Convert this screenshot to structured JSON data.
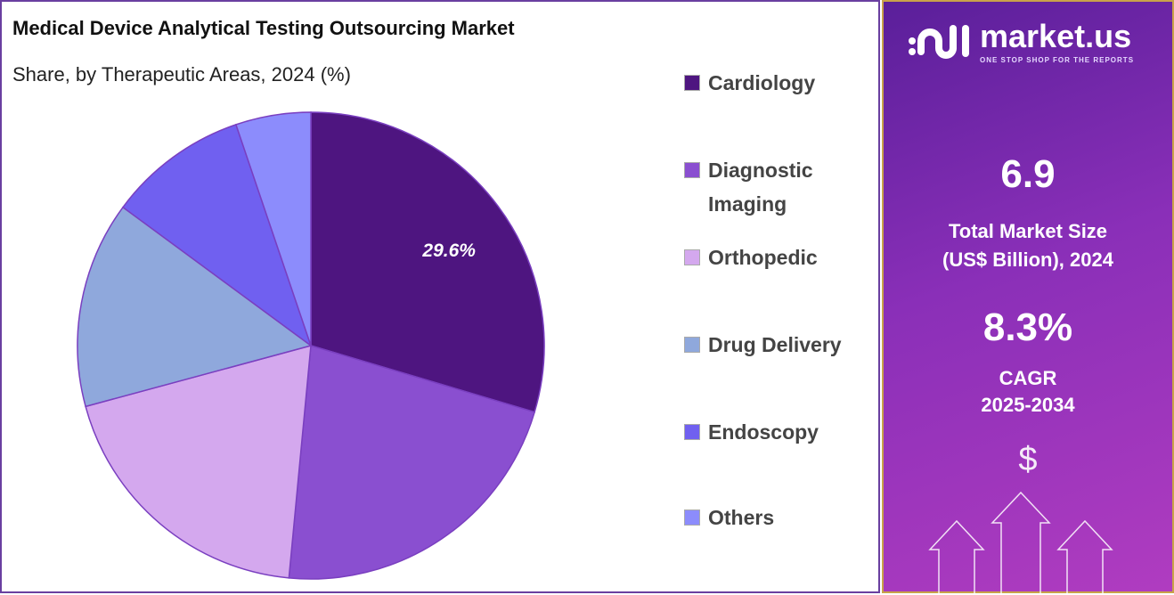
{
  "chart_data": {
    "type": "pie",
    "title": "Medical Device Analytical Testing Outsourcing Market",
    "subtitle": "Share, by Therapeutic Areas, 2024 (%)",
    "categories": [
      "Cardiology",
      "Diagnostic Imaging",
      "Orthopedic",
      "Drug Delivery",
      "Endoscopy",
      "Others"
    ],
    "values": [
      29.6,
      21.9,
      19.3,
      14.3,
      9.7,
      5.2
    ],
    "colors": [
      "#4e1580",
      "#8a4fd0",
      "#d4a8ee",
      "#8fa8dc",
      "#7060f0",
      "#8c8cfc"
    ],
    "data_labels": [
      "29.6%",
      "",
      "",
      "",
      "",
      ""
    ],
    "legend_position": "right"
  },
  "panel": {
    "logo_name": "market.us",
    "logo_tagline": "ONE STOP SHOP FOR THE REPORTS",
    "market_size": "6.9",
    "market_size_label_1": "Total Market Size",
    "market_size_label_2": "(US$ Billion), 2024",
    "cagr": "8.3%",
    "cagr_label_1": "CAGR",
    "cagr_label_2": "2025-2034",
    "dollar_symbol": "$"
  }
}
